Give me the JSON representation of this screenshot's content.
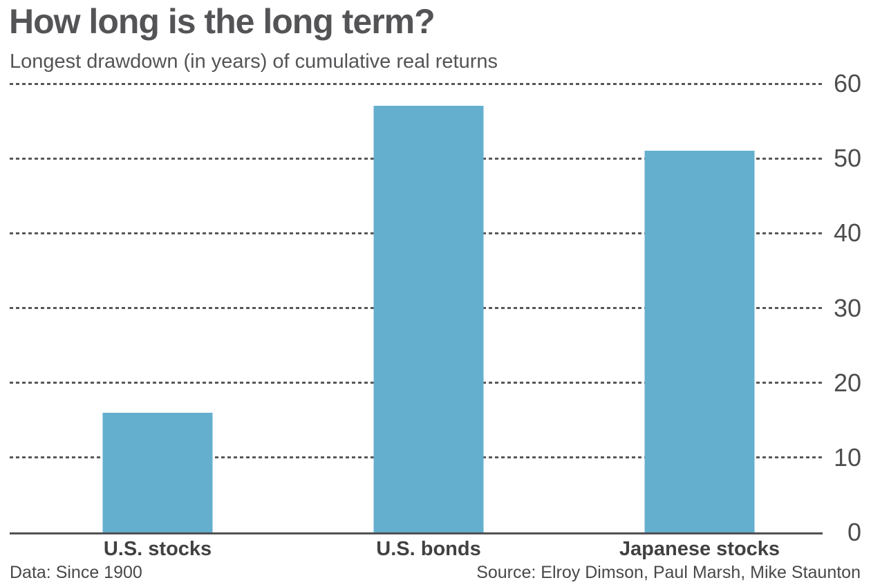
{
  "header": {
    "title": "How long is the long term?",
    "subtitle": "Longest drawdown (in years) of cumulative real returns"
  },
  "footer": {
    "left": "Data: Since 1900",
    "right": "Source: Elroy Dimson, Paul Marsh, Mike Staunton"
  },
  "chart_data": {
    "type": "bar",
    "title": "How long is the long term?",
    "subtitle": "Longest drawdown (in years) of cumulative real returns",
    "categories": [
      "U.S. stocks",
      "U.S. bonds",
      "Japanese stocks"
    ],
    "values": [
      16,
      57,
      51
    ],
    "unit": "years",
    "xlabel": "",
    "ylabel": "",
    "ylim": [
      0,
      60
    ],
    "yticks": [
      0,
      10,
      20,
      30,
      40,
      50,
      60
    ],
    "ytick_side": "right",
    "grid": "horizontal-dotted",
    "legend": "none",
    "bar_color": "#65afce",
    "grid_color": "#58585a",
    "axis_color": "#515153",
    "text_color": "#545457"
  }
}
